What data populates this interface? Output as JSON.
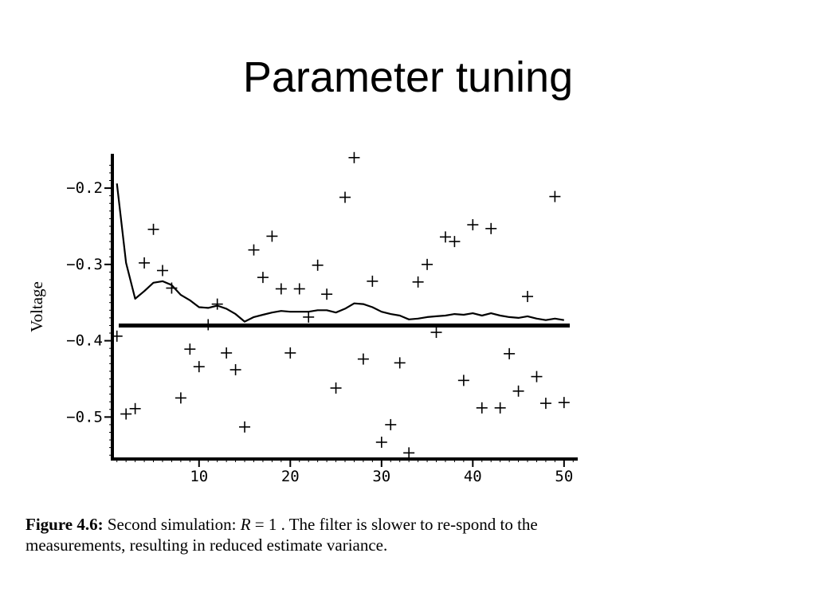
{
  "slide": {
    "title": "Parameter tuning"
  },
  "caption": {
    "label": "Figure 4.6:",
    "text_before": " Second simulation: ",
    "variable": "R",
    "equation": " = 1",
    "text_after": " . The filter is slower to re-spond to the measurements, resulting in reduced estimate variance."
  },
  "chart_data": {
    "type": "line",
    "title": "",
    "xlabel": "",
    "ylabel": "Voltage",
    "xlim": [
      0.5,
      51.5
    ],
    "ylim": [
      -0.555,
      -0.155
    ],
    "xticks": [
      10,
      20,
      30,
      40,
      50
    ],
    "xtick_labels": [
      "10",
      "20",
      "30",
      "40",
      "50"
    ],
    "yticks": [
      -0.2,
      -0.3,
      -0.4,
      -0.5
    ],
    "ytick_labels": [
      "-0.2",
      "-0.3",
      "-0.4",
      "-0.5"
    ],
    "grid": false,
    "legend": "none",
    "colors": {
      "line": "#000000",
      "markers": "#000000"
    },
    "series": [
      {
        "kind": "scatter",
        "marker": "+",
        "x": [
          1,
          2,
          3,
          4,
          5,
          6,
          7,
          8,
          9,
          10,
          11,
          12,
          13,
          14,
          15,
          16,
          17,
          18,
          19,
          20,
          21,
          22,
          23,
          24,
          25,
          26,
          27,
          28,
          29,
          30,
          31,
          32,
          33,
          34,
          35,
          36,
          37,
          38,
          39,
          40,
          41,
          42,
          43,
          44,
          45,
          46,
          47,
          48,
          49,
          50
        ],
        "y": [
          -0.394,
          -0.496,
          -0.489,
          -0.298,
          -0.254,
          -0.308,
          -0.331,
          -0.475,
          -0.411,
          -0.434,
          -0.379,
          -0.352,
          -0.416,
          -0.438,
          -0.513,
          -0.281,
          -0.317,
          -0.263,
          -0.332,
          -0.416,
          -0.332,
          -0.369,
          -0.301,
          -0.339,
          -0.462,
          -0.212,
          -0.16,
          -0.424,
          -0.322,
          -0.533,
          -0.51,
          -0.429,
          -0.547,
          -0.323,
          -0.3,
          -0.389,
          -0.264,
          -0.27,
          -0.452,
          -0.248,
          -0.488,
          -0.253,
          -0.488,
          -0.417,
          -0.466,
          -0.342,
          -0.447,
          -0.482,
          -0.211,
          -0.481
        ]
      },
      {
        "kind": "line",
        "x": [
          1,
          2,
          3,
          4,
          5,
          6,
          7,
          8,
          9,
          10,
          11,
          12,
          13,
          14,
          15,
          16,
          17,
          18,
          19,
          20,
          21,
          22,
          23,
          24,
          25,
          26,
          27,
          28,
          29,
          30,
          31,
          32,
          33,
          34,
          35,
          36,
          37,
          38,
          39,
          40,
          41,
          42,
          43,
          44,
          45,
          46,
          47,
          48,
          49,
          50
        ],
        "y": [
          -0.194,
          -0.298,
          -0.345,
          -0.335,
          -0.324,
          -0.322,
          -0.327,
          -0.34,
          -0.347,
          -0.356,
          -0.357,
          -0.354,
          -0.358,
          -0.365,
          -0.375,
          -0.369,
          -0.366,
          -0.363,
          -0.361,
          -0.362,
          -0.362,
          -0.362,
          -0.36,
          -0.36,
          -0.363,
          -0.358,
          -0.351,
          -0.352,
          -0.356,
          -0.362,
          -0.365,
          -0.367,
          -0.372,
          -0.371,
          -0.369,
          -0.368,
          -0.367,
          -0.365,
          -0.366,
          -0.364,
          -0.367,
          -0.364,
          -0.367,
          -0.369,
          -0.37,
          -0.368,
          -0.371,
          -0.373,
          -0.371,
          -0.373
        ]
      },
      {
        "kind": "hline",
        "y": -0.38
      }
    ]
  }
}
